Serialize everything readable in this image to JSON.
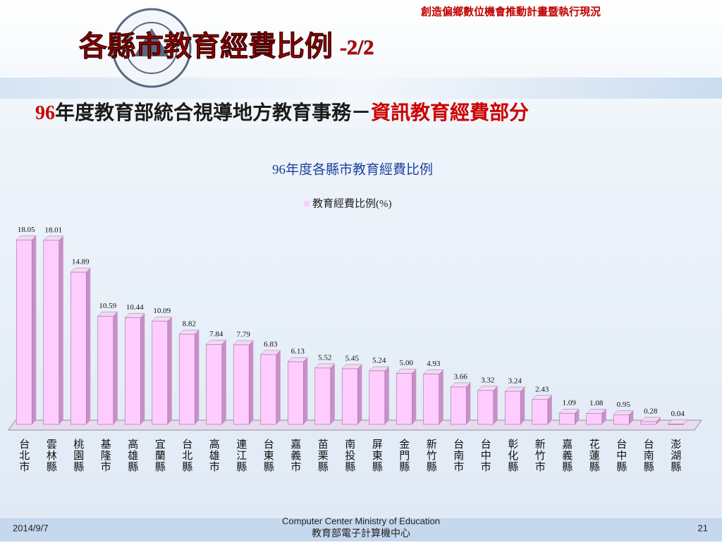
{
  "header": {
    "caption": "創造偏鄉數位機會推動計畫暨執行現況",
    "title": "各縣市教育經費比例",
    "title_suffix": "-2/2",
    "subtitle_parts": [
      "96",
      "年度教育部統合視導地方教育事務－",
      "資訊教育經費部分"
    ]
  },
  "chart_data": {
    "type": "bar",
    "title": "96年度各縣市教育經費比例",
    "categories": [
      "台北市",
      "雲林縣",
      "桃園縣",
      "基隆市",
      "高雄縣",
      "宜蘭縣",
      "台北縣",
      "高雄市",
      "連江縣",
      "台東縣",
      "嘉義市",
      "苗栗縣",
      "南投縣",
      "屏東縣",
      "金門縣",
      "新竹縣",
      "台南市",
      "台中市",
      "彰化縣",
      "新竹市",
      "嘉義縣",
      "花蓮縣",
      "台中縣",
      "台南縣",
      "澎湖縣"
    ],
    "series": [
      {
        "name": "教育經費比例(%)",
        "color": "#ffccff",
        "values": [
          18.05,
          18.01,
          14.89,
          10.59,
          10.44,
          10.09,
          8.82,
          7.84,
          7.79,
          6.83,
          6.13,
          5.52,
          5.45,
          5.24,
          5.0,
          4.93,
          3.66,
          3.32,
          3.24,
          2.43,
          1.09,
          1.08,
          0.95,
          0.28,
          0.04
        ],
        "value_labels": [
          "18.05",
          "18.01",
          "14.89",
          "10.59",
          "10.44",
          "10.09",
          "8.82",
          "7.84",
          "7.79",
          "6.83",
          "6.13",
          "5.52",
          "5.45",
          "5.24",
          "5.00",
          "4.93",
          "3.66",
          "3.32",
          "3.24",
          "2.43",
          "1.09",
          "1.08",
          "0.95",
          "0.28",
          "0.04"
        ]
      }
    ],
    "ylim": [
      0,
      20
    ],
    "legend": "top"
  },
  "footer": {
    "date": "2014/9/7",
    "org_en": "Computer Center Ministry of Education",
    "org_zh": "教育部電子計算機中心",
    "page": "21"
  }
}
